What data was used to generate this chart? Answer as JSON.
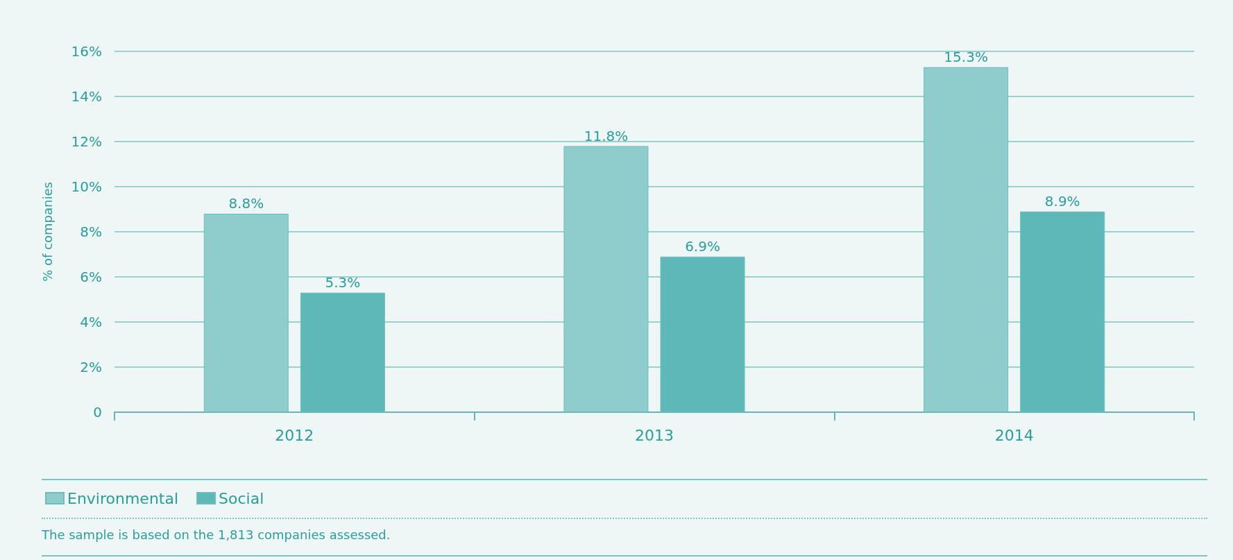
{
  "chart_data": {
    "type": "bar",
    "ylabel": "% of companies",
    "categories": [
      "2012",
      "2013",
      "2014"
    ],
    "series": [
      {
        "name": "Environmental",
        "color": "#8fcccc",
        "values": [
          8.8,
          11.8,
          15.3
        ],
        "value_labels": [
          "8.8%",
          "11.8%",
          "15.3%"
        ]
      },
      {
        "name": "Social",
        "color": "#5eb8b8",
        "values": [
          5.3,
          6.9,
          8.9
        ],
        "value_labels": [
          "5.3%",
          "6.9%",
          "8.9%"
        ]
      }
    ],
    "ylim": [
      0,
      16
    ],
    "yticks": [
      0,
      {
        "value": 2,
        "label": "2%"
      },
      {
        "value": 4,
        "label": "4%"
      },
      {
        "value": 6,
        "label": "6%"
      },
      {
        "value": 8,
        "label": "8%"
      },
      {
        "value": 10,
        "label": "10%"
      },
      {
        "value": 12,
        "label": "12%"
      },
      {
        "value": 14,
        "label": "14%"
      },
      {
        "value": 16,
        "label": "16%"
      }
    ],
    "grid": "y",
    "legend": "bottom left",
    "annotations": [
      "The sample is based on the 1,813 companies assessed."
    ]
  }
}
